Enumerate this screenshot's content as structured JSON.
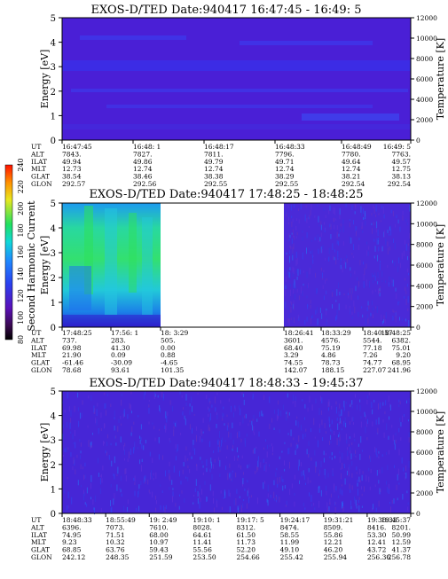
{
  "colors": {
    "background": "#ffffff",
    "text": "#000000",
    "quiet_fill": "#4a1fd6",
    "band_fill": "#3a2fe8",
    "hot_green": "#2ee05a",
    "hot_cyan": "#23c8e0"
  },
  "chart_data": [
    {
      "type": "heatmap",
      "title": "EXOS-D/TED   Date:940417  16:47:45 - 16:49: 5",
      "ylabel": "Energy [eV]",
      "y2label": "Temperature [K]",
      "ylim": [
        0,
        5
      ],
      "y2lim": [
        0,
        12000
      ],
      "yticks": [
        "0",
        "1",
        "2",
        "3",
        "4",
        "5"
      ],
      "y2ticks": [
        "0",
        "2000",
        "4000",
        "6000",
        "8000",
        "10000",
        "12000"
      ],
      "data_gaps": [],
      "orbit_rows": [
        "UT",
        "ALT",
        "ILAT",
        "MLT",
        "GLAT",
        "GLON"
      ],
      "orbit_columns": [
        [
          "16:47:45",
          "7843.",
          "49.94",
          "12.73",
          "38.54",
          "292.57"
        ],
        [
          "16:48: 1",
          "7827.",
          "49.86",
          "12.74",
          "38.46",
          "292.56"
        ],
        [
          "16:48:17",
          "7811.",
          "49.79",
          "12.74",
          "38.38",
          "292.55"
        ],
        [
          "16:48:33",
          "7796.",
          "49.71",
          "12.74",
          "38.29",
          "292.55"
        ],
        [
          "16:48:49",
          "7780.",
          "49.64",
          "12.74",
          "38.21",
          "292.54"
        ],
        [
          "16:49: 5",
          "7763.",
          "49.57",
          "12.75",
          "38.13",
          "292.54"
        ]
      ]
    },
    {
      "type": "heatmap",
      "title": "EXOS-D/TED   Date:940417  17:48:25 - 18:48:25",
      "ylabel": "Energy [eV]",
      "y2label": "Temperature [K]",
      "ylim": [
        0,
        5
      ],
      "y2lim": [
        0,
        12000
      ],
      "yticks": [
        "0",
        "1",
        "2",
        "3",
        "4",
        "5"
      ],
      "y2ticks": [
        "0",
        "2000",
        "4000",
        "6000",
        "8000",
        "10000",
        "12000"
      ],
      "data_gaps": [
        [
          "18: 3:29",
          "18:26:41"
        ]
      ],
      "orbit_rows": [
        "UT",
        "ALT",
        "ILAT",
        "MLT",
        "GLAT",
        "GLON"
      ],
      "orbit_columns": [
        [
          "17:48:25",
          "737.",
          "69.98",
          "21.90",
          "-61.46",
          "78.68"
        ],
        [
          "17:56: 1",
          "283.",
          "41.30",
          "0.09",
          "-30.09",
          "93.61"
        ],
        [
          "18: 3:29",
          "505.",
          "0.00",
          "0.88",
          "-4.65",
          "101.35"
        ],
        [
          "18:26:41",
          "3601.",
          "68.40",
          "3.29",
          "74.55",
          "142.07"
        ],
        [
          "18:33:29",
          "4576.",
          "75.19",
          "4.86",
          "78.73",
          "188.15"
        ],
        [
          "18:40:57",
          "5544.",
          "77.18",
          "7.26",
          "74.77",
          "227.07"
        ],
        [
          "18:48:25",
          "6382.",
          "75.01",
          "9.20",
          "68.95",
          "241.96"
        ]
      ]
    },
    {
      "type": "heatmap",
      "title": "EXOS-D/TED   Date:940417  18:48:33 - 19:45:37",
      "ylabel": "Energy [eV]",
      "y2label": "Temperature [K]",
      "ylim": [
        0,
        5
      ],
      "y2lim": [
        0,
        12000
      ],
      "yticks": [
        "0",
        "1",
        "2",
        "3",
        "4",
        "5"
      ],
      "y2ticks": [
        "0",
        "2000",
        "4000",
        "6000",
        "8000",
        "10000",
        "12000"
      ],
      "data_gaps": [],
      "orbit_rows": [
        "UT",
        "ALT",
        "ILAT",
        "MLT",
        "GLAT",
        "GLON"
      ],
      "orbit_columns": [
        [
          "18:48:33",
          "6396.",
          "74.95",
          "9.23",
          "68.85",
          "242.12"
        ],
        [
          "18:55:49",
          "7073.",
          "71.51",
          "10.32",
          "63.76",
          "248.35"
        ],
        [
          "19: 2:49",
          "7610.",
          "68.00",
          "10.97",
          "59.43",
          "251.59"
        ],
        [
          "19:10: 1",
          "8028.",
          "64.61",
          "11.41",
          "55.56",
          "253.50"
        ],
        [
          "19:17: 5",
          "8312.",
          "61.50",
          "11.73",
          "52.20",
          "254.66"
        ],
        [
          "19:24:17",
          "8474.",
          "58.55",
          "11.99",
          "49.10",
          "255.42"
        ],
        [
          "19:31:21",
          "8509.",
          "55.86",
          "12.21",
          "46.20",
          "255.94"
        ],
        [
          "19:38:33",
          "8416.",
          "53.30",
          "12.41",
          "43.72",
          "256.36"
        ],
        [
          "19:45:37",
          "8201.",
          "50.99",
          "12.59",
          "41.37",
          "256.78"
        ]
      ]
    }
  ],
  "colorbar": {
    "label": "Second Harmonic Current",
    "min": 80,
    "max": 240,
    "ticks": [
      "80",
      "100",
      "120",
      "140",
      "160",
      "180",
      "200",
      "220",
      "240"
    ],
    "stops": [
      "#000000",
      "#3a0a50",
      "#5a10b8",
      "#2a40f0",
      "#1f88ff",
      "#10d8d8",
      "#20e060",
      "#e8e820",
      "#ff9000",
      "#ff1000"
    ]
  }
}
